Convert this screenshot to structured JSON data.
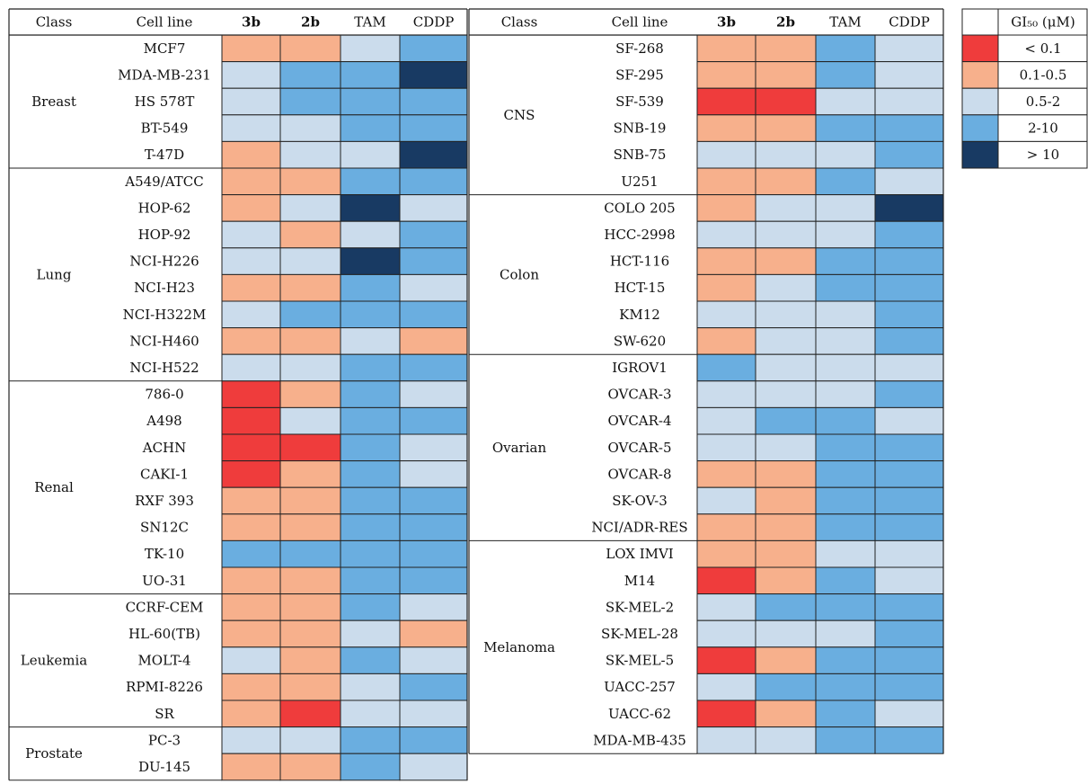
{
  "colors": {
    "lt01": "#ef3c3c",
    "b01_05": "#f7b08c",
    "b05_2": "#cbdcec",
    "b2_10": "#6aaee0",
    "gt10": "#183a63",
    "line": "#222222"
  },
  "chart_data": {
    "type": "heatmap",
    "columns": [
      "Class",
      "Cell line",
      "3b",
      "2b",
      "TAM",
      "CDDP"
    ],
    "value_columns": [
      "3b",
      "2b",
      "TAM",
      "CDDP"
    ],
    "legend": {
      "title": "GI₅₀ (μM)",
      "items": [
        {
          "key": "lt01",
          "label": "< 0.1"
        },
        {
          "key": "b01_05",
          "label": "0.1-0.5"
        },
        {
          "key": "b05_2",
          "label": "0.5-2"
        },
        {
          "key": "b2_10",
          "label": "2-10"
        },
        {
          "key": "gt10",
          "label": "> 10"
        }
      ]
    },
    "panels": [
      {
        "groups": [
          {
            "class": "Breast",
            "rows": [
              {
                "cell": "MCF7",
                "values": [
                  "b01_05",
                  "b01_05",
                  "b05_2",
                  "b2_10"
                ]
              },
              {
                "cell": "MDA-MB-231",
                "values": [
                  "b05_2",
                  "b2_10",
                  "b2_10",
                  "gt10"
                ]
              },
              {
                "cell": "HS 578T",
                "values": [
                  "b05_2",
                  "b2_10",
                  "b2_10",
                  "b2_10"
                ]
              },
              {
                "cell": "BT-549",
                "values": [
                  "b05_2",
                  "b05_2",
                  "b2_10",
                  "b2_10"
                ]
              },
              {
                "cell": "T-47D",
                "values": [
                  "b01_05",
                  "b05_2",
                  "b05_2",
                  "gt10"
                ]
              }
            ]
          },
          {
            "class": "Lung",
            "rows": [
              {
                "cell": "A549/ATCC",
                "values": [
                  "b01_05",
                  "b01_05",
                  "b2_10",
                  "b2_10"
                ]
              },
              {
                "cell": "HOP-62",
                "values": [
                  "b01_05",
                  "b05_2",
                  "gt10",
                  "b05_2"
                ]
              },
              {
                "cell": "HOP-92",
                "values": [
                  "b05_2",
                  "b01_05",
                  "b05_2",
                  "b2_10"
                ]
              },
              {
                "cell": "NCI-H226",
                "values": [
                  "b05_2",
                  "b05_2",
                  "gt10",
                  "b2_10"
                ]
              },
              {
                "cell": "NCI-H23",
                "values": [
                  "b01_05",
                  "b01_05",
                  "b2_10",
                  "b05_2"
                ]
              },
              {
                "cell": "NCI-H322M",
                "values": [
                  "b05_2",
                  "b2_10",
                  "b2_10",
                  "b2_10"
                ]
              },
              {
                "cell": "NCI-H460",
                "values": [
                  "b01_05",
                  "b01_05",
                  "b05_2",
                  "b01_05"
                ]
              },
              {
                "cell": "NCI-H522",
                "values": [
                  "b05_2",
                  "b05_2",
                  "b2_10",
                  "b2_10"
                ]
              }
            ]
          },
          {
            "class": "Renal",
            "rows": [
              {
                "cell": "786-0",
                "values": [
                  "lt01",
                  "b01_05",
                  "b2_10",
                  "b05_2"
                ]
              },
              {
                "cell": "A498",
                "values": [
                  "lt01",
                  "b05_2",
                  "b2_10",
                  "b2_10"
                ]
              },
              {
                "cell": "ACHN",
                "values": [
                  "lt01",
                  "lt01",
                  "b2_10",
                  "b05_2"
                ]
              },
              {
                "cell": "CAKI-1",
                "values": [
                  "lt01",
                  "b01_05",
                  "b2_10",
                  "b05_2"
                ]
              },
              {
                "cell": "RXF 393",
                "values": [
                  "b01_05",
                  "b01_05",
                  "b2_10",
                  "b2_10"
                ]
              },
              {
                "cell": "SN12C",
                "values": [
                  "b01_05",
                  "b01_05",
                  "b2_10",
                  "b2_10"
                ]
              },
              {
                "cell": "TK-10",
                "values": [
                  "b2_10",
                  "b2_10",
                  "b2_10",
                  "b2_10"
                ]
              },
              {
                "cell": "UO-31",
                "values": [
                  "b01_05",
                  "b01_05",
                  "b2_10",
                  "b2_10"
                ]
              }
            ]
          },
          {
            "class": "Leukemia",
            "rows": [
              {
                "cell": "CCRF-CEM",
                "values": [
                  "b01_05",
                  "b01_05",
                  "b2_10",
                  "b05_2"
                ]
              },
              {
                "cell": "HL-60(TB)",
                "values": [
                  "b01_05",
                  "b01_05",
                  "b05_2",
                  "b01_05"
                ]
              },
              {
                "cell": "MOLT-4",
                "values": [
                  "b05_2",
                  "b01_05",
                  "b2_10",
                  "b05_2"
                ]
              },
              {
                "cell": "RPMI-8226",
                "values": [
                  "b01_05",
                  "b01_05",
                  "b05_2",
                  "b2_10"
                ]
              },
              {
                "cell": "SR",
                "values": [
                  "b01_05",
                  "lt01",
                  "b05_2",
                  "b05_2"
                ]
              }
            ]
          },
          {
            "class": "Prostate",
            "rows": [
              {
                "cell": "PC-3",
                "values": [
                  "b05_2",
                  "b05_2",
                  "b2_10",
                  "b2_10"
                ]
              },
              {
                "cell": "DU-145",
                "values": [
                  "b01_05",
                  "b01_05",
                  "b2_10",
                  "b05_2"
                ]
              }
            ]
          }
        ]
      },
      {
        "groups": [
          {
            "class": "CNS",
            "rows": [
              {
                "cell": "SF-268",
                "values": [
                  "b01_05",
                  "b01_05",
                  "b2_10",
                  "b05_2"
                ]
              },
              {
                "cell": "SF-295",
                "values": [
                  "b01_05",
                  "b01_05",
                  "b2_10",
                  "b05_2"
                ]
              },
              {
                "cell": "SF-539",
                "values": [
                  "lt01",
                  "lt01",
                  "b05_2",
                  "b05_2"
                ]
              },
              {
                "cell": "SNB-19",
                "values": [
                  "b01_05",
                  "b01_05",
                  "b2_10",
                  "b2_10"
                ]
              },
              {
                "cell": "SNB-75",
                "values": [
                  "b05_2",
                  "b05_2",
                  "b05_2",
                  "b2_10"
                ]
              },
              {
                "cell": "U251",
                "values": [
                  "b01_05",
                  "b01_05",
                  "b2_10",
                  "b05_2"
                ]
              }
            ]
          },
          {
            "class": "Colon",
            "rows": [
              {
                "cell": "COLO 205",
                "values": [
                  "b01_05",
                  "b05_2",
                  "b05_2",
                  "gt10"
                ]
              },
              {
                "cell": "HCC-2998",
                "values": [
                  "b05_2",
                  "b05_2",
                  "b05_2",
                  "b2_10"
                ]
              },
              {
                "cell": "HCT-116",
                "values": [
                  "b01_05",
                  "b01_05",
                  "b2_10",
                  "b2_10"
                ]
              },
              {
                "cell": "HCT-15",
                "values": [
                  "b01_05",
                  "b05_2",
                  "b2_10",
                  "b2_10"
                ]
              },
              {
                "cell": "KM12",
                "values": [
                  "b05_2",
                  "b05_2",
                  "b05_2",
                  "b2_10"
                ]
              },
              {
                "cell": "SW-620",
                "values": [
                  "b01_05",
                  "b05_2",
                  "b05_2",
                  "b2_10"
                ]
              }
            ]
          },
          {
            "class": "Ovarian",
            "rows": [
              {
                "cell": "IGROV1",
                "values": [
                  "b2_10",
                  "b05_2",
                  "b05_2",
                  "b05_2"
                ]
              },
              {
                "cell": "OVCAR-3",
                "values": [
                  "b05_2",
                  "b05_2",
                  "b05_2",
                  "b2_10"
                ]
              },
              {
                "cell": "OVCAR-4",
                "values": [
                  "b05_2",
                  "b2_10",
                  "b2_10",
                  "b05_2"
                ]
              },
              {
                "cell": "OVCAR-5",
                "values": [
                  "b05_2",
                  "b05_2",
                  "b2_10",
                  "b2_10"
                ]
              },
              {
                "cell": "OVCAR-8",
                "values": [
                  "b01_05",
                  "b01_05",
                  "b2_10",
                  "b2_10"
                ]
              },
              {
                "cell": "SK-OV-3",
                "values": [
                  "b05_2",
                  "b01_05",
                  "b2_10",
                  "b2_10"
                ]
              },
              {
                "cell": "NCI/ADR-RES",
                "values": [
                  "b01_05",
                  "b01_05",
                  "b2_10",
                  "b2_10"
                ]
              }
            ]
          },
          {
            "class": "Melanoma",
            "rows": [
              {
                "cell": "LOX IMVI",
                "values": [
                  "b01_05",
                  "b01_05",
                  "b05_2",
                  "b05_2"
                ]
              },
              {
                "cell": "M14",
                "values": [
                  "lt01",
                  "b01_05",
                  "b2_10",
                  "b05_2"
                ]
              },
              {
                "cell": "SK-MEL-2",
                "values": [
                  "b05_2",
                  "b2_10",
                  "b2_10",
                  "b2_10"
                ]
              },
              {
                "cell": "SK-MEL-28",
                "values": [
                  "b05_2",
                  "b05_2",
                  "b05_2",
                  "b2_10"
                ]
              },
              {
                "cell": "SK-MEL-5",
                "values": [
                  "lt01",
                  "b01_05",
                  "b2_10",
                  "b2_10"
                ]
              },
              {
                "cell": "UACC-257",
                "values": [
                  "b05_2",
                  "b2_10",
                  "b2_10",
                  "b2_10"
                ]
              },
              {
                "cell": "UACC-62",
                "values": [
                  "lt01",
                  "b01_05",
                  "b2_10",
                  "b05_2"
                ]
              },
              {
                "cell": "MDA-MB-435",
                "values": [
                  "b05_2",
                  "b05_2",
                  "b2_10",
                  "b2_10"
                ]
              }
            ]
          }
        ]
      }
    ]
  }
}
